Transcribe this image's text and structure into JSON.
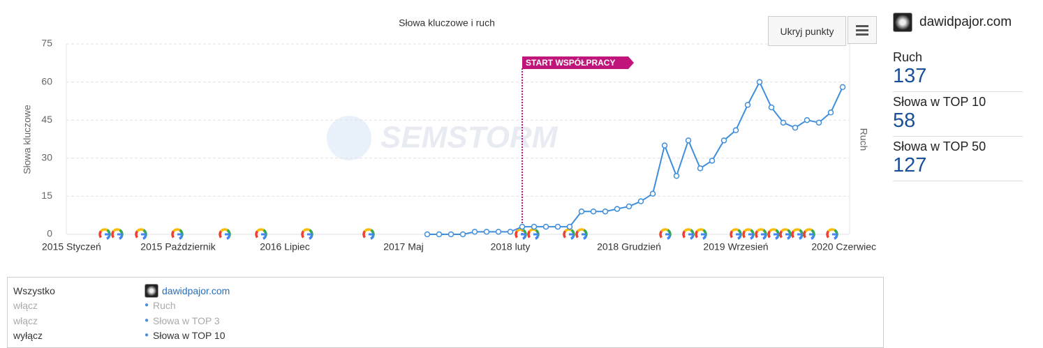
{
  "chart_data": {
    "type": "line",
    "title": "Słowa kluczowe i ruch",
    "ylabel": "Słowa kluczowe",
    "y2label": "Ruch",
    "watermark": "SEMSTORM",
    "annotation": "START WSPÓŁPRACY",
    "button": "Ukryj punkty",
    "categories": [
      "2015 Styczeń",
      null,
      null,
      null,
      null,
      null,
      null,
      null,
      null,
      "2015 Październik",
      null,
      null,
      null,
      null,
      null,
      null,
      null,
      null,
      "2016 Lipiec",
      null,
      null,
      null,
      null,
      null,
      null,
      null,
      null,
      null,
      "2017 Maj",
      null,
      null,
      null,
      null,
      null,
      null,
      null,
      null,
      "2018 luty",
      null,
      null,
      null,
      null,
      null,
      null,
      null,
      null,
      null,
      "2018 Grudzień",
      null,
      null,
      null,
      null,
      null,
      null,
      null,
      null,
      "2019 Wrzesień",
      null,
      null,
      null,
      null,
      null,
      null,
      null,
      null,
      "2020 Czerwiec"
    ],
    "series": [
      {
        "name": "Słowa w TOP 10",
        "color": "#3f8edc",
        "values": [
          null,
          null,
          null,
          null,
          null,
          null,
          null,
          null,
          null,
          null,
          null,
          null,
          null,
          null,
          null,
          null,
          null,
          null,
          null,
          null,
          null,
          null,
          null,
          null,
          null,
          null,
          null,
          null,
          null,
          null,
          0,
          0,
          0,
          0,
          1,
          1,
          1,
          1,
          3,
          3,
          3,
          3,
          3,
          9,
          9,
          9,
          10,
          11,
          13,
          16,
          35,
          23,
          37,
          26,
          29,
          37,
          41,
          51,
          60,
          50,
          44,
          42,
          45,
          44,
          48,
          58
        ]
      }
    ],
    "ylim": [
      0,
      75
    ],
    "yticks": [
      0,
      15,
      30,
      45,
      60,
      75
    ],
    "grid": true
  },
  "sidebar": {
    "site": "dawidpajor.com",
    "stats": [
      {
        "label": "Ruch",
        "value": 137
      },
      {
        "label": "Słowa w TOP 10",
        "value": 58
      },
      {
        "label": "Słowa w TOP 50",
        "value": 127
      }
    ]
  },
  "legend_panel": {
    "all": "Wszystko",
    "toggles": [
      "włącz",
      "włącz",
      "wyłącz"
    ],
    "site": "dawidpajor.com",
    "items": [
      "Ruch",
      "Słowa w TOP 3",
      "Słowa w TOP 10"
    ]
  }
}
